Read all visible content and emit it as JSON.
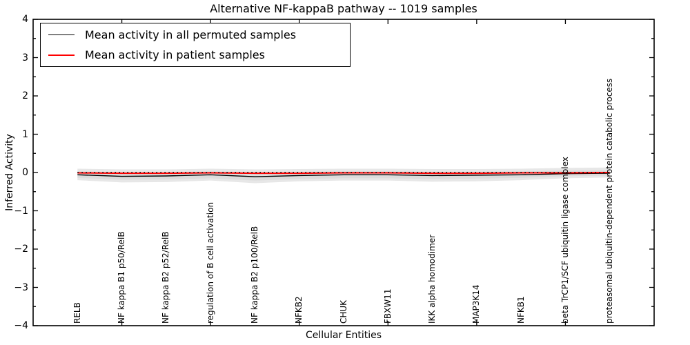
{
  "title": "Alternative NF-kappaB pathway -- 1019 samples",
  "legend": {
    "items": [
      {
        "label": "Mean activity in all permuted samples",
        "color": "#000000"
      },
      {
        "label": "Mean activity in patient samples",
        "color": "#ff0000"
      }
    ],
    "position": "upper left",
    "border_color": "#000000"
  },
  "chart_data": {
    "type": "line",
    "title": "Alternative NF-kappaB pathway -- 1019 samples",
    "xlabel": "Cellular Entities",
    "ylabel": "Inferred Activity",
    "grid": false,
    "ylim": [
      -4,
      4
    ],
    "xlim_units": [
      -1,
      13
    ],
    "ytick_values": [
      4,
      3,
      2,
      1,
      0,
      -1,
      -2,
      -3,
      -4
    ],
    "ytick_labels": [
      "4",
      "3",
      "2",
      "1",
      "0",
      "−1",
      "−2",
      "−3",
      "−4"
    ],
    "ytick_minor_step": 0.5,
    "xtick_major_indices": [
      1,
      3,
      5,
      7,
      9,
      11
    ],
    "categories": [
      "RELB",
      "NF kappa B1 p50/RelB",
      "NF kappa B2 p52/RelB",
      "regulation of B cell activation",
      "NF kappa B2 p100/RelB",
      "NFKB2",
      "CHUK",
      "FBXW11",
      "IKK alpha homodimer",
      "MAP3K14",
      "NFKB1",
      "beta TrCP1/SCF ubiquitin ligase complex",
      "proteasomal ubiquitin-dependent protein catabolic process"
    ],
    "series": [
      {
        "name": "Mean activity in all permuted samples",
        "color": "#000000",
        "style": "solid",
        "width": 1.4,
        "values": [
          -0.06,
          -0.1,
          -0.09,
          -0.06,
          -0.11,
          -0.08,
          -0.06,
          -0.06,
          -0.08,
          -0.07,
          -0.06,
          -0.03,
          -0.02
        ]
      },
      {
        "name": "Mean activity in patient samples",
        "color": "#ff0000",
        "style": "solid",
        "width": 2,
        "values": [
          -0.01,
          -0.02,
          -0.02,
          -0.01,
          -0.02,
          -0.02,
          -0.01,
          -0.01,
          -0.02,
          -0.02,
          -0.01,
          -0.01,
          0.0
        ]
      }
    ],
    "zero_line": {
      "y": 0,
      "style": "dotted",
      "color": "#000000"
    },
    "bands": [
      {
        "name": "permuted-spread-outer",
        "color": "#e7e7e7",
        "opacity": 1,
        "upper": [
          0.1,
          0.08,
          0.08,
          0.1,
          0.08,
          0.09,
          0.1,
          0.1,
          0.09,
          0.09,
          0.1,
          0.12,
          0.13
        ],
        "lower": [
          -0.2,
          -0.26,
          -0.25,
          -0.21,
          -0.28,
          -0.23,
          -0.21,
          -0.21,
          -0.24,
          -0.23,
          -0.2,
          -0.15,
          -0.13
        ]
      },
      {
        "name": "permuted-spread-inner",
        "color": "#d9d9d9",
        "opacity": 0.8,
        "upper": [
          0.03,
          0.01,
          0.01,
          0.03,
          0.01,
          0.02,
          0.03,
          0.03,
          0.02,
          0.02,
          0.03,
          0.05,
          0.06
        ],
        "lower": [
          -0.14,
          -0.19,
          -0.18,
          -0.15,
          -0.21,
          -0.17,
          -0.15,
          -0.15,
          -0.17,
          -0.16,
          -0.14,
          -0.1,
          -0.08
        ]
      }
    ],
    "axes_color": "#000000"
  }
}
